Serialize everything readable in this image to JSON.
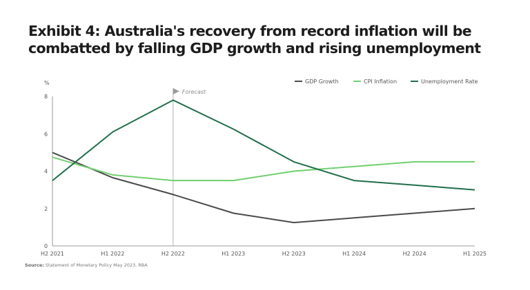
{
  "title": "Exhibit 4: Australia's recovery from record inflation will be combatted by falling GDP growth and rising unemployment",
  "source_label": "Source:",
  "source_text": "Statement of Monetary Policy May 2023, RBA",
  "chart_data": {
    "type": "line",
    "title": "Exhibit 4: Australia's recovery from record inflation will be combatted by falling GDP growth and rising unemployment",
    "xlabel": "",
    "ylabel": "%",
    "ylim": [
      0,
      8
    ],
    "yticks": [
      0,
      2,
      4,
      6,
      8
    ],
    "grid": false,
    "legend_position": "top-right",
    "categories": [
      "H2 2021",
      "H1 2022",
      "H2 2022",
      "H1 2023",
      "H2 2023",
      "H1 2024",
      "H2 2024",
      "H1 2025"
    ],
    "annotation": {
      "label": "Forecast",
      "at": "H2 2022"
    },
    "series": [
      {
        "name": "GDP Growth",
        "color": "#4a4a4a",
        "values": [
          5.0,
          3.65,
          2.75,
          1.75,
          1.25,
          1.5,
          1.75,
          2.0
        ]
      },
      {
        "name": "CPI Inflation",
        "color": "#6fcf6f",
        "values": [
          4.75,
          3.8,
          3.5,
          3.5,
          4.0,
          4.25,
          4.5,
          4.5
        ]
      },
      {
        "name": "Unemployment Rate",
        "color": "#1f6e4a",
        "values": [
          3.5,
          6.1,
          7.8,
          6.25,
          4.5,
          3.5,
          3.25,
          3.0
        ]
      }
    ]
  }
}
